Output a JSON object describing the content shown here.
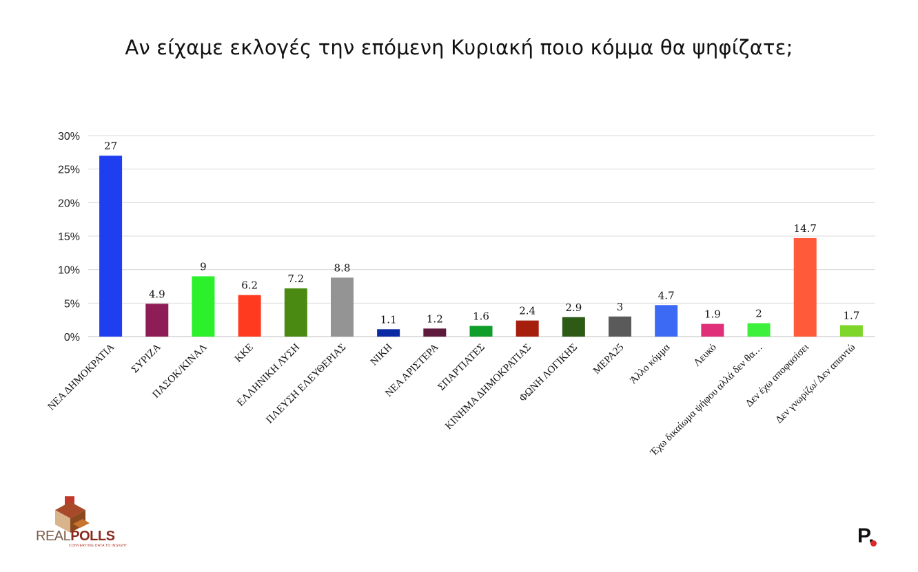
{
  "title": "Αν είχαμε εκλογές την επόμενη Κυριακή ποιο κόμμα θα ψηφίζατε;",
  "logo": {
    "brand_light": "REAL",
    "brand_bold": "POLLS",
    "tagline": "CONVERTING DATA TO INSIGHT"
  },
  "corner_mark": "P.",
  "chart_data": {
    "type": "bar",
    "title": "Αν είχαμε εκλογές την επόμενη Κυριακή ποιο κόμμα θα ψηφίζατε;",
    "ylim": [
      0,
      30
    ],
    "yticks": [
      "0%",
      "5%",
      "10%",
      "15%",
      "20%",
      "25%",
      "30%"
    ],
    "grid": true,
    "categories": [
      "ΝΕΑ ΔΗΜΟΚΡΑΤΙΑ",
      "ΣΥΡΙΖΑ",
      "ΠΑΣΟΚ/ΚΙΝΑΛ",
      "ΚΚΕ",
      "ΕΛΛΗΝΙΚΗ ΛΥΣΗ",
      "ΠΛΕΥΣΗ ΕΛΕΥΘΕΡΙΑΣ",
      "ΝΙΚΗ",
      "ΝΕΑ ΑΡΙΣΤΕΡΑ",
      "ΣΠΑΡΤΙΑΤΕΣ",
      "ΚΙΝΗΜΑ ΔΗΜΟΚΡΑΤΙΑΣ",
      "ΦΩΝΗ ΛΟΓΙΚΗΣ",
      "ΜΕΡΑ25",
      "Άλλο κόμμα",
      "Λευκό",
      "Έχω δικαίωμα ψήφου αλλά δεν θα…",
      "Δεν έχω αποφασίσει",
      "Δεν γνωρίζω/ Δεν απαντώ"
    ],
    "values": [
      27,
      4.9,
      9,
      6.2,
      7.2,
      8.8,
      1.1,
      1.2,
      1.6,
      2.4,
      2.9,
      3,
      4.7,
      1.9,
      2,
      14.7,
      1.7
    ],
    "labels": [
      "27",
      "4.9",
      "9",
      "6.2",
      "7.2",
      "8.8",
      "1.1",
      "1.2",
      "1.6",
      "2.4",
      "2.9",
      "3",
      "4.7",
      "1.9",
      "2",
      "14.7",
      "1.7"
    ],
    "colors": [
      "#1f3ef0",
      "#8e1d57",
      "#2bf02b",
      "#ff3a1f",
      "#4a8a12",
      "#949494",
      "#0a2aa3",
      "#5e1a3c",
      "#0f9e2a",
      "#a51f0c",
      "#2d5a14",
      "#5a5a5a",
      "#3d6af5",
      "#e0307a",
      "#3cf03c",
      "#ff5a3a",
      "#7fd62a"
    ]
  }
}
